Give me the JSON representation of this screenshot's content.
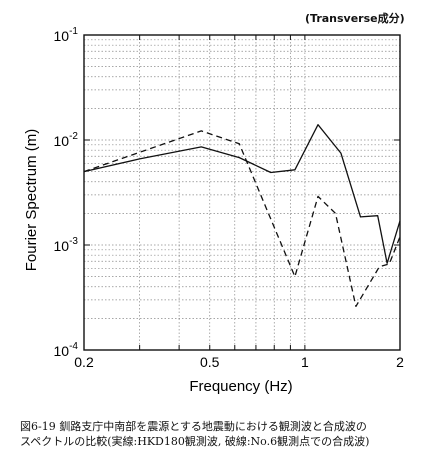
{
  "chart_data": {
    "type": "line",
    "title": "",
    "annotation": "(Transverse成分)",
    "xlabel": "Frequency (Hz)",
    "ylabel": "Fourier Spectrum (m)",
    "xscale": "log",
    "yscale": "log",
    "xlim": [
      0.2,
      2
    ],
    "ylim": [
      0.0001,
      0.1
    ],
    "x_tick_labels": [
      {
        "value": 0.2,
        "label": "0.2"
      },
      {
        "value": 0.5,
        "label": "0.5"
      },
      {
        "value": 1,
        "label": "1"
      },
      {
        "value": 2,
        "label": "2"
      }
    ],
    "y_ticks": [
      {
        "value": 0.1,
        "base": "10",
        "exp": "-1"
      },
      {
        "value": 0.01,
        "base": "10",
        "exp": "-2"
      },
      {
        "value": 0.001,
        "base": "10",
        "exp": "-3"
      },
      {
        "value": 0.0001,
        "base": "10",
        "exp": "-4"
      }
    ],
    "grid": true,
    "series": [
      {
        "style": "solid",
        "color": "#111111",
        "x": [
          0.2,
          0.3,
          0.47,
          0.62,
          0.78,
          0.93,
          1.1,
          1.3,
          1.5,
          1.7,
          1.82,
          2.0
        ],
        "y": [
          0.005,
          0.0066,
          0.0086,
          0.0068,
          0.0049,
          0.0052,
          0.014,
          0.0075,
          0.00185,
          0.0019,
          0.00067,
          0.0017
        ]
      },
      {
        "style": "dashed",
        "color": "#111111",
        "x": [
          0.2,
          0.47,
          0.62,
          0.93,
          1.1,
          1.25,
          1.45,
          1.72,
          1.85,
          2.0
        ],
        "y": [
          0.005,
          0.0122,
          0.0092,
          0.0005,
          0.0029,
          0.002,
          0.00026,
          0.00062,
          0.00066,
          0.0012
        ]
      }
    ]
  },
  "caption": {
    "line1": "図6-19  釧路支庁中南部を震源とする地震動における観測波と合成波の",
    "line2": "スペクトルの比較(実線:HKD180観測波, 破線:No.6観測点での合成波)"
  }
}
